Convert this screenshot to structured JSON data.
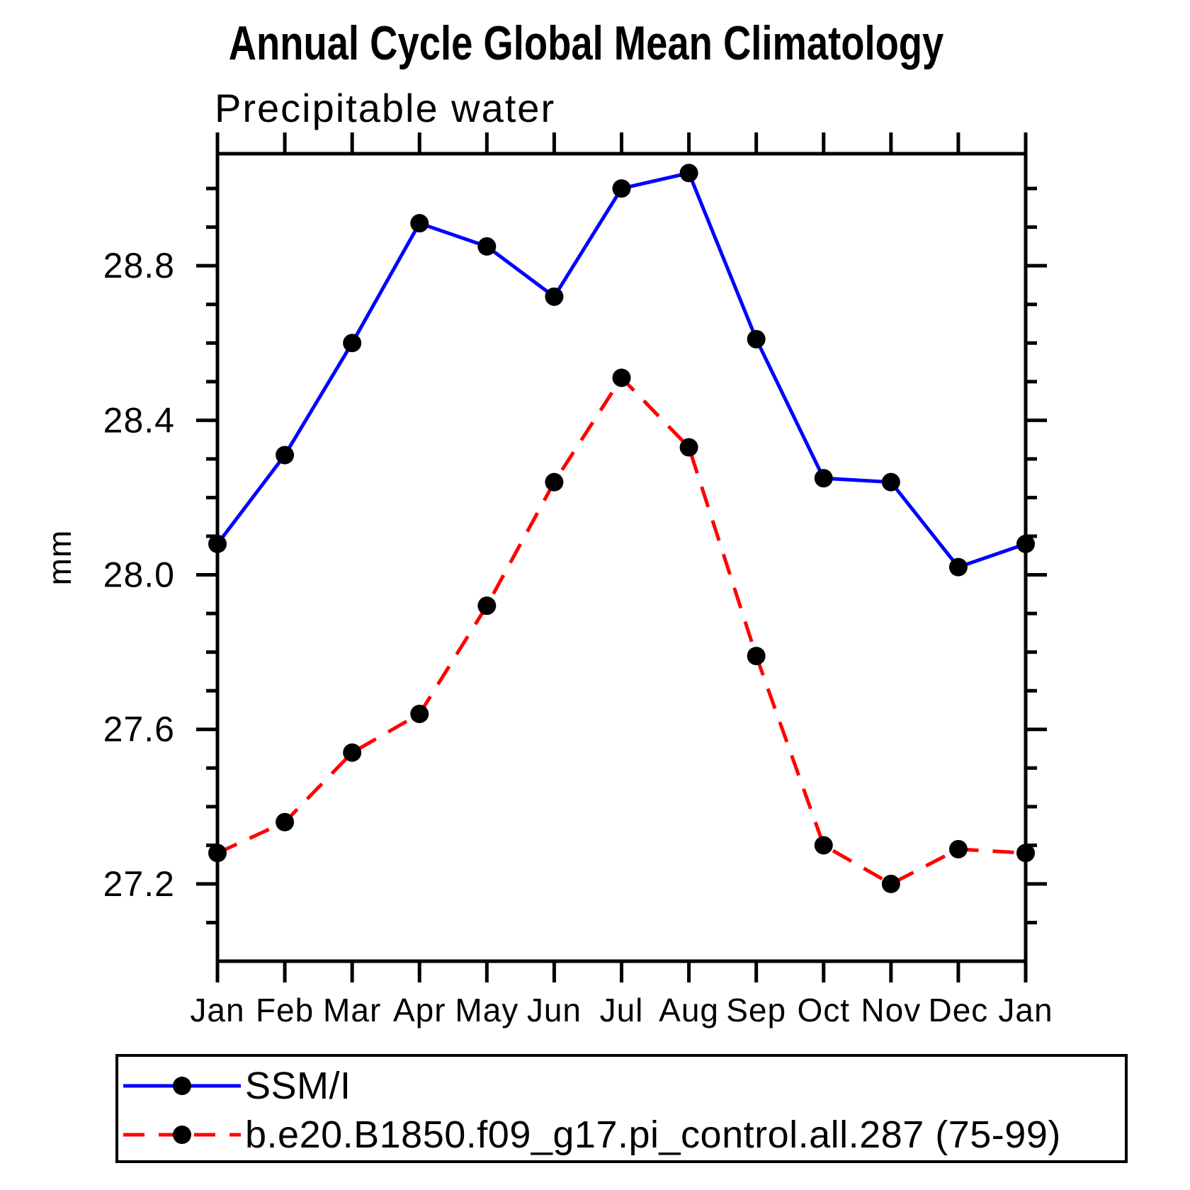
{
  "title": "Annual Cycle Global Mean Climatology",
  "subtitle": "Precipitable water",
  "chart_data": {
    "type": "line",
    "title": "Annual Cycle Global Mean Climatology",
    "subtitle": "Precipitable water",
    "ylabel": "mm",
    "xlabel": "",
    "x_categories": [
      "Jan",
      "Feb",
      "Mar",
      "Apr",
      "May",
      "Jun",
      "Jul",
      "Aug",
      "Sep",
      "Oct",
      "Nov",
      "Dec",
      "Jan"
    ],
    "ylim": [
      27.0,
      29.09
    ],
    "minor_tick_step": 0.1,
    "labeled_yticks": [
      28.8,
      28.4,
      28.0,
      27.6,
      27.2
    ],
    "grid": false,
    "legend_position": "bottom-left",
    "axis_color": "#000000",
    "marker_color": "#000000",
    "series": [
      {
        "name": "SSM/I",
        "color": "#0000ff",
        "style": "solid",
        "marker": "circle",
        "values": [
          28.08,
          28.31,
          28.6,
          28.91,
          28.85,
          28.72,
          29.0,
          29.04,
          28.61,
          28.25,
          28.24,
          28.02,
          28.08
        ]
      },
      {
        "name": "b.e20.B1850.f09_g17.pi_control.all.287 (75-99)",
        "color": "#ff0000",
        "style": "dashed",
        "marker": "circle",
        "values": [
          27.28,
          27.36,
          27.54,
          27.64,
          27.92,
          28.24,
          28.51,
          28.33,
          27.79,
          27.3,
          27.2,
          27.29,
          27.28
        ]
      }
    ]
  }
}
